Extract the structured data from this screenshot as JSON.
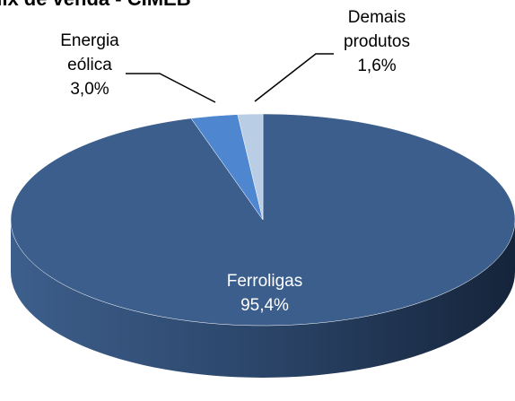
{
  "chart_data": {
    "type": "pie3d",
    "title": "Mix de venda - CIMEB",
    "categories": [
      "Ferroligas",
      "Energia eólica",
      "Demais produtos"
    ],
    "values": [
      95.4,
      3.0,
      1.6
    ],
    "value_labels": [
      "95,4%",
      "3,0%",
      "1,6%"
    ],
    "colors": [
      "#3b5e8c",
      "#4f86d0",
      "#b9cde5"
    ]
  }
}
